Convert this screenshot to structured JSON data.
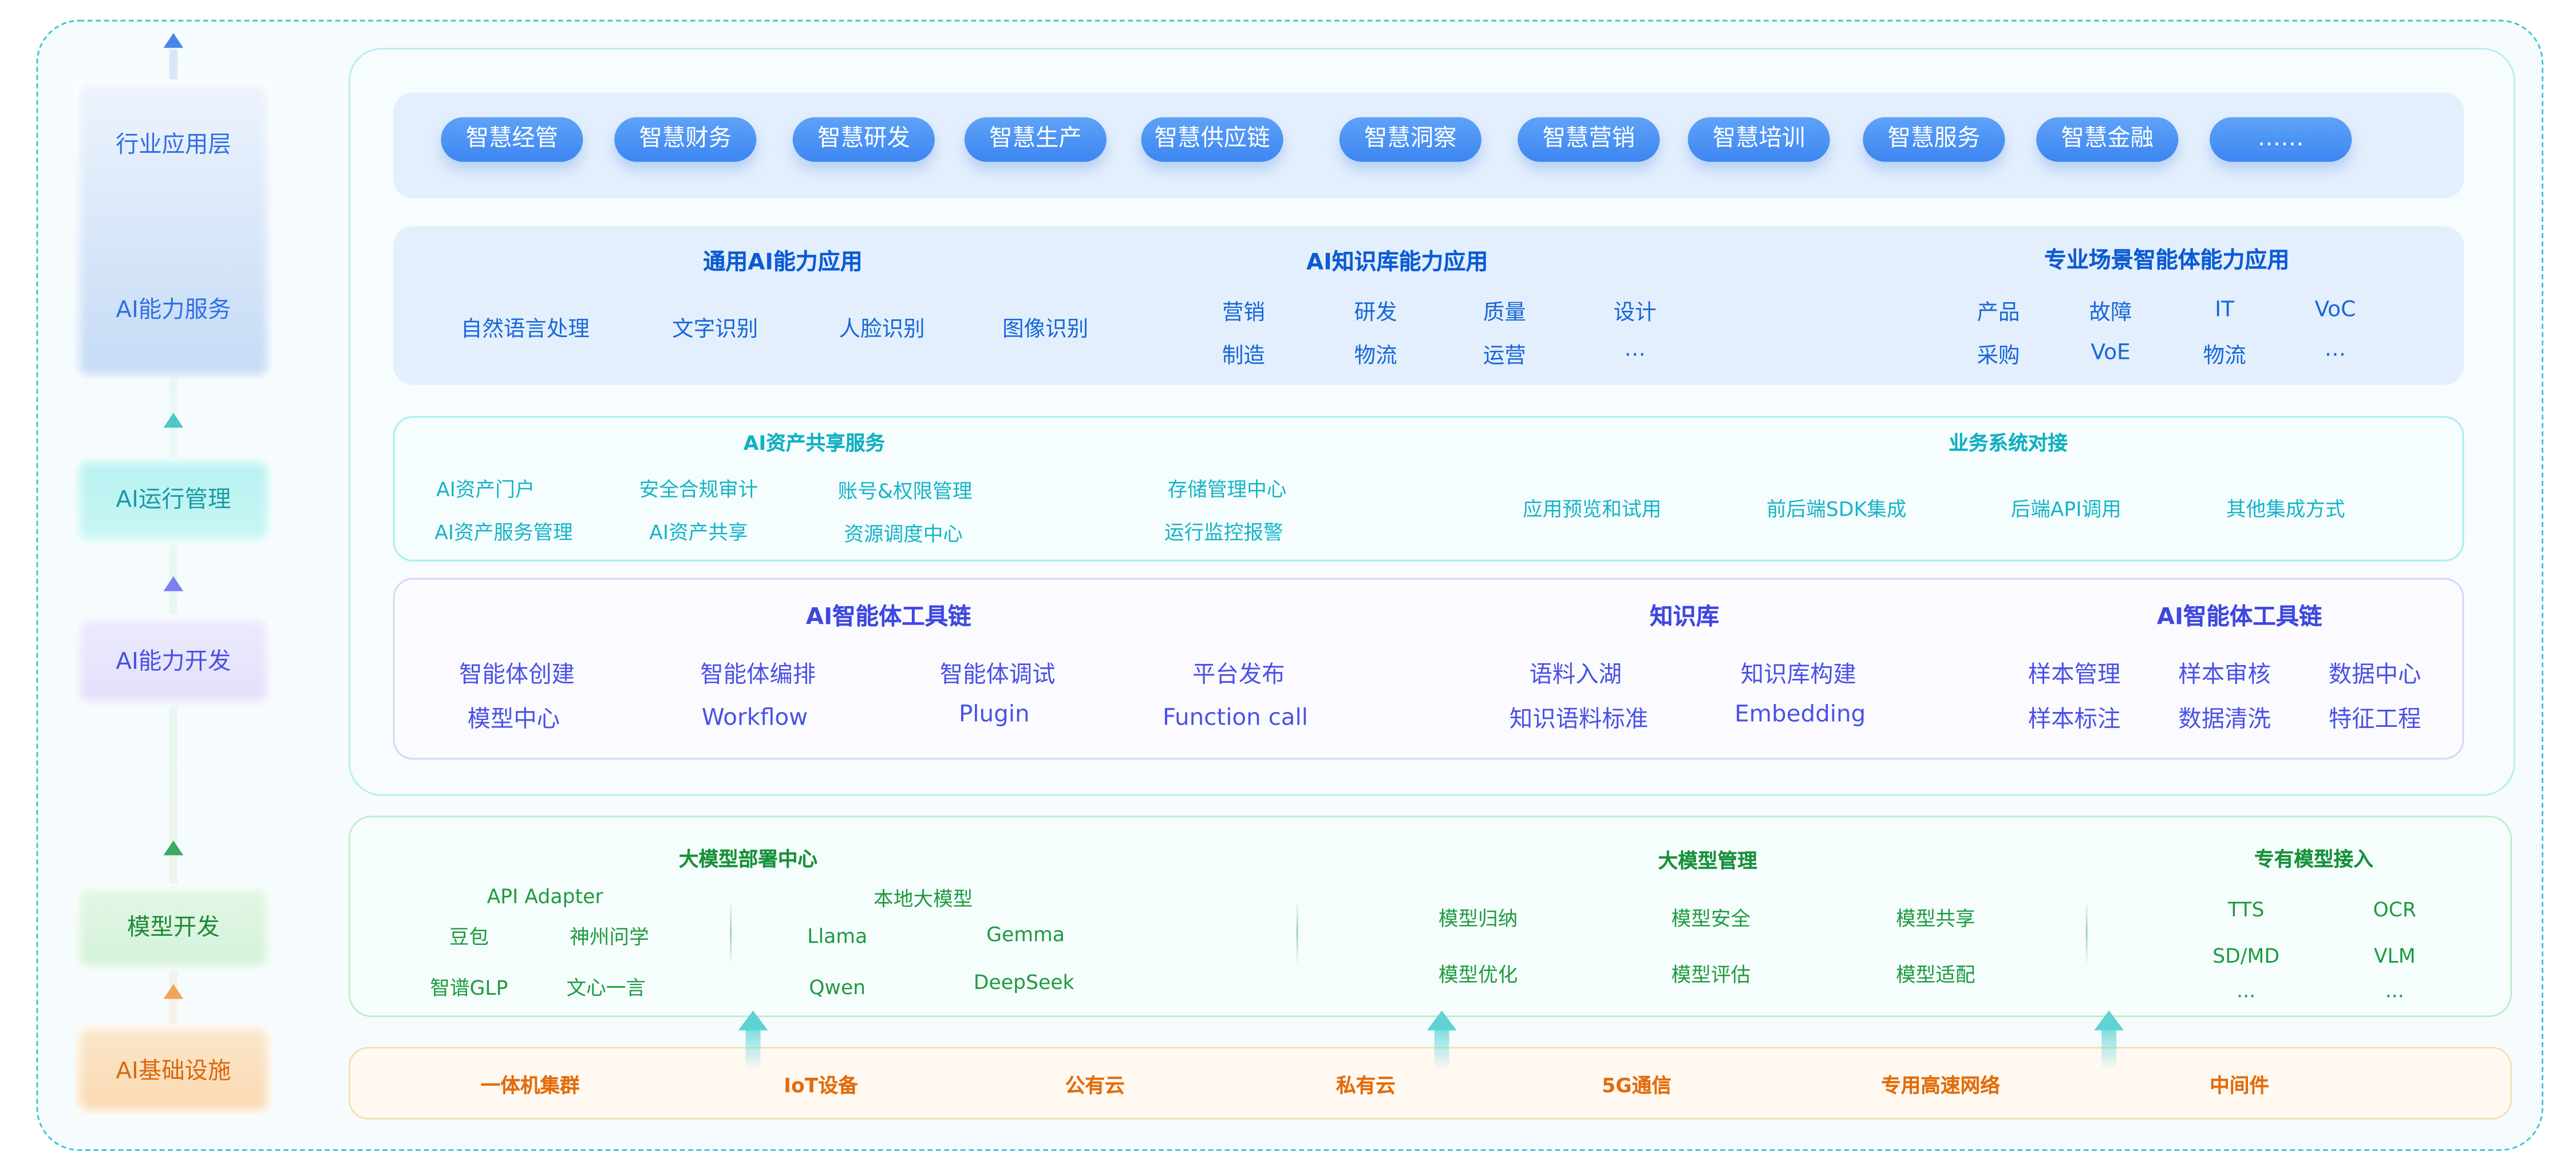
{
  "layers": {
    "industry_app": "行业应用层",
    "ai_service": "AI能力服务",
    "ai_ops": "AI运行管理",
    "ai_dev": "AI能力开发",
    "model_dev": "模型开发",
    "ai_infra": "AI基础设施"
  },
  "apps": [
    "智慧经管",
    "智慧财务",
    "智慧研发",
    "智慧生产",
    "智慧供应链",
    "智慧洞察",
    "智慧营销",
    "智慧培训",
    "智慧服务",
    "智慧金融",
    "……"
  ],
  "ai_capability": {
    "general": {
      "title": "通用AI能力应用",
      "items": [
        "自然语言处理",
        "文字识别",
        "人脸识别",
        "图像识别"
      ]
    },
    "knowledge": {
      "title": "AI知识库能力应用",
      "items": [
        "营销",
        "研发",
        "质量",
        "设计",
        "制造",
        "物流",
        "运营",
        "…"
      ]
    },
    "scenario": {
      "title": "专业场景智能体能力应用",
      "items": [
        "产品",
        "故障",
        "IT",
        "VoC",
        "采购",
        "VoE",
        "物流",
        "…"
      ]
    }
  },
  "ops": {
    "asset": {
      "title": "AI资产共享服务",
      "items": [
        "AI资产门户",
        "安全合规审计",
        "账号&权限管理",
        "存储管理中心",
        "AI资产服务管理",
        "AI资产共享",
        "资源调度中心",
        "运行监控报警"
      ]
    },
    "integration": {
      "title": "业务系统对接",
      "items": [
        "应用预览和试用",
        "前后端SDK集成",
        "后端API调用",
        "其他集成方式"
      ]
    }
  },
  "dev": {
    "agent_toolchain": {
      "title": "AI智能体工具链",
      "items": [
        "智能体创建",
        "智能体编排",
        "智能体调试",
        "平台发布",
        "模型中心",
        "Workflow",
        "Plugin",
        "Function call"
      ]
    },
    "knowledge_base": {
      "title": "知识库",
      "items": [
        "语料入湖",
        "知识库构建",
        "知识语料标准",
        "Embedding"
      ]
    },
    "agent_toolchain2": {
      "title": "AI智能体工具链",
      "items": [
        "样本管理",
        "样本审核",
        "数据中心",
        "样本标注",
        "数据清洗",
        "特征工程"
      ]
    }
  },
  "model": {
    "deploy": {
      "title": "大模型部署中心",
      "api_adapter": "API Adapter",
      "local": "本地大模型",
      "items": [
        "豆包",
        "神州问学",
        "智谱GLP",
        "文心一言"
      ],
      "local_items": [
        "Llama",
        "Gemma",
        "Qwen",
        "DeepSeek"
      ]
    },
    "manage": {
      "title": "大模型管理",
      "items": [
        "模型归纳",
        "模型安全",
        "模型共享",
        "模型优化",
        "模型评估",
        "模型适配"
      ]
    },
    "special": {
      "title": "专有模型接入",
      "items": [
        "TTS",
        "OCR",
        "SD/MD",
        "VLM",
        "...",
        "..."
      ]
    }
  },
  "infra": [
    "一体机集群",
    "IoT设备",
    "公有云",
    "私有云",
    "5G通信",
    "专用高速网络",
    "中间件"
  ],
  "colors": {
    "blue": "#1767d8",
    "cyan": "#16b4c6",
    "purple": "#4a52e6",
    "green": "#1f9a40",
    "orange": "#e26c0c",
    "pill": "#3d86f2"
  }
}
